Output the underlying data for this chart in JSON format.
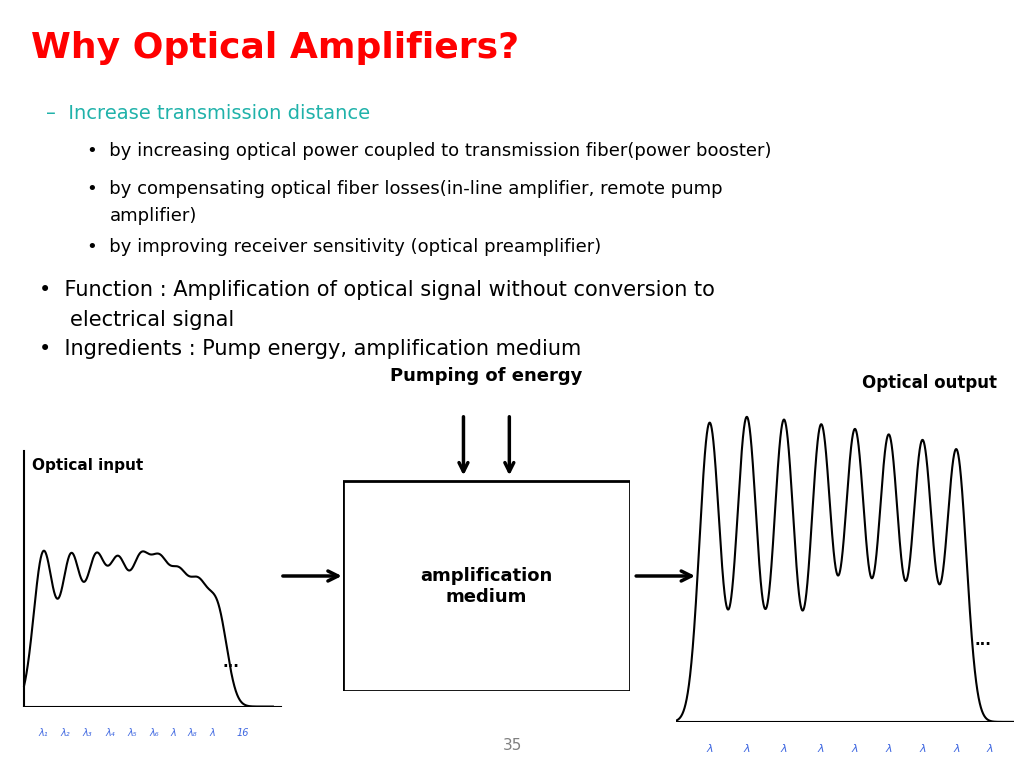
{
  "title": "Why Optical Amplifiers?",
  "title_color": "#FF0000",
  "title_fontsize": 26,
  "dash_item": "–  Increase transmission distance",
  "dash_color": "#20B2AA",
  "dash_fontsize": 14,
  "bullet1": "by increasing optical power coupled to transmission fiber(power booster)",
  "bullet2a": "by compensating optical fiber losses(in-line amplifier, remote pump",
  "bullet2b": "amplifier)",
  "bullet3": "by improving receiver sensitivity (optical preamplifier)",
  "sub_bullet_fontsize": 13,
  "main_bullet1a": "Function : Amplification of optical signal without conversion to",
  "main_bullet1b": "electrical signal",
  "main_bullet2": "Ingredients : Pump energy, amplification medium",
  "main_bullet_fontsize": 15,
  "diagram_label_input": "Optical input",
  "diagram_label_output": "Optical output",
  "diagram_label_pump": "Pumping of energy",
  "diagram_label_medium": "amplification\nmedium",
  "diagram_dots_in": "...",
  "diagram_dots_out": "...",
  "lambda_texts_in": [
    "λ₁",
    "λ₂",
    "λ₃",
    "λ₄",
    "λ₅",
    "λ₆",
    "λ",
    "λ₈",
    "λ",
    "16"
  ],
  "lambda_texts_out": [
    "λ",
    "λ",
    "λ",
    "λ",
    "λ",
    "λ",
    "λ",
    "λ",
    "λ"
  ],
  "lambda_color": "#4169E1",
  "page_number": "35",
  "background_color": "#FFFFFF"
}
